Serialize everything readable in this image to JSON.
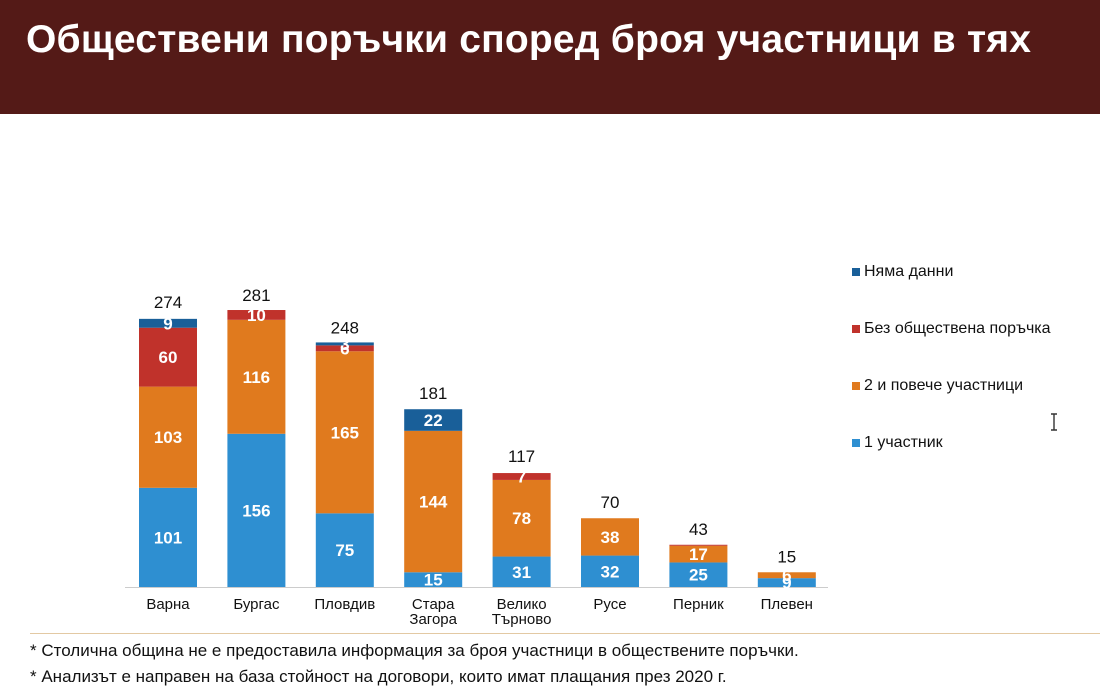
{
  "header": {
    "title": "Обществени поръчки според броя участници в тях"
  },
  "chart_data": {
    "type": "bar",
    "stacked": true,
    "categories": [
      "Варна",
      "Бургас",
      "Пловдив",
      "Стара Загора",
      "Велико Търново",
      "Русе",
      "Перник",
      "Плевен"
    ],
    "category_lines": [
      [
        "Варна"
      ],
      [
        "Бургас"
      ],
      [
        "Пловдив"
      ],
      [
        "Стара",
        "Загора"
      ],
      [
        "Велико",
        "Търново"
      ],
      [
        "Русе"
      ],
      [
        "Перник"
      ],
      [
        "Плевен"
      ]
    ],
    "series": [
      {
        "name": "1 участник",
        "color": "#2e8fd1",
        "values": [
          101,
          156,
          75,
          15,
          31,
          32,
          25,
          9
        ]
      },
      {
        "name": "2 и повече участници",
        "color": "#e07a1e",
        "values": [
          103,
          116,
          165,
          144,
          78,
          38,
          17,
          6
        ]
      },
      {
        "name": "Без обществена поръчка",
        "color": "#c0322b",
        "values": [
          60,
          10,
          6,
          0,
          7,
          0,
          1,
          0
        ]
      },
      {
        "name": "Няма данни",
        "color": "#195f99",
        "values": [
          9,
          0,
          3,
          22,
          0,
          0,
          0,
          0
        ]
      }
    ],
    "totals": [
      274,
      281,
      248,
      181,
      117,
      70,
      43,
      15
    ],
    "legend_order": [
      "Няма данни",
      "Без обществена поръчка",
      "2 и повече участници",
      "1 участник"
    ],
    "legend_position": "right",
    "grid": false,
    "ylim": [
      0,
      281
    ]
  },
  "footnotes": [
    "* Столична община не е предоставила информация за броя участници в обществените поръчки.",
    "* Анализът е направен на база стойност на договори, които имат плащания през 2020 г."
  ]
}
